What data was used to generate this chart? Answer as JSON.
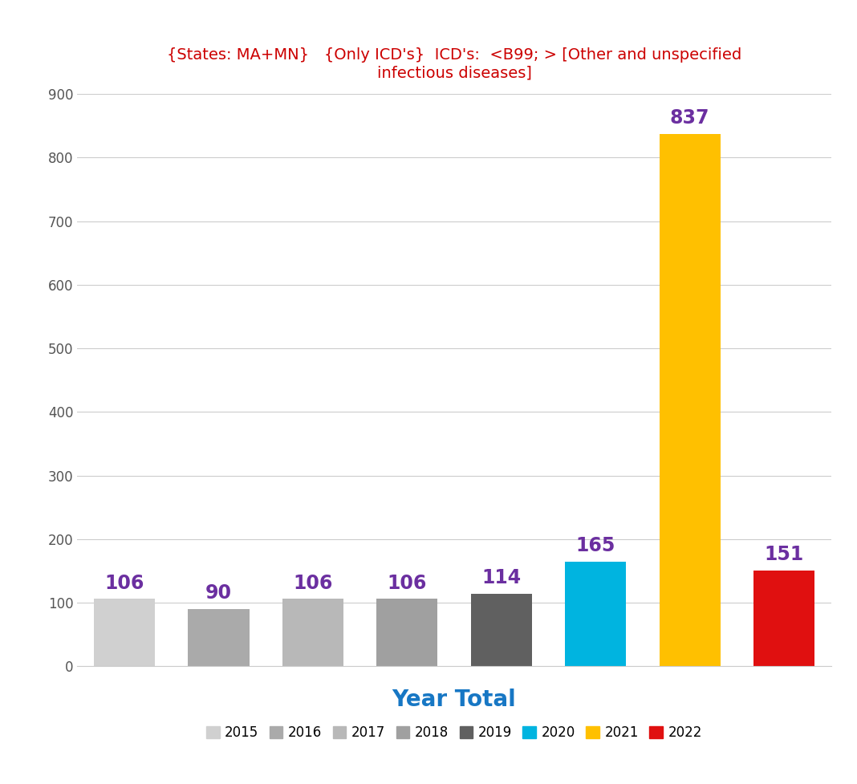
{
  "title_line1": "{States: MA+MN}   {Only ICD's}  ICD's:  <B99; > [Other and unspecified",
  "title_line2": "infectious diseases]",
  "title_color": "#cc0000",
  "xlabel": "Year Total",
  "xlabel_color": "#1777c4",
  "years": [
    "2015",
    "2016",
    "2017",
    "2018",
    "2019",
    "2020",
    "2021",
    "2022"
  ],
  "values": [
    106,
    90,
    106,
    106,
    114,
    165,
    837,
    151
  ],
  "bar_colors": [
    "#d0d0d0",
    "#aaaaaa",
    "#b8b8b8",
    "#a0a0a0",
    "#606060",
    "#00b4e0",
    "#ffc000",
    "#e01010"
  ],
  "label_color": "#6b2fa0",
  "ylim": [
    0,
    900
  ],
  "yticks": [
    0,
    100,
    200,
    300,
    400,
    500,
    600,
    700,
    800,
    900
  ],
  "legend_colors": [
    "#d0d0d0",
    "#aaaaaa",
    "#b8b8b8",
    "#a0a0a0",
    "#606060",
    "#00b4e0",
    "#ffc000",
    "#e01010"
  ],
  "legend_labels": [
    "2015",
    "2016",
    "2017",
    "2018",
    "2019",
    "2020",
    "2021",
    "2022"
  ],
  "background_color": "#ffffff",
  "grid_color": "#cccccc"
}
